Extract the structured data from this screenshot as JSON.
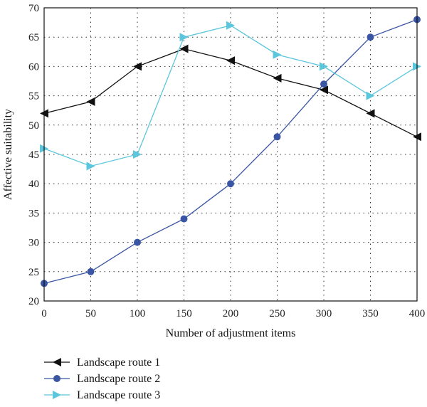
{
  "chart_data": {
    "type": "line",
    "title": "",
    "xlabel": "Number of adjustment items",
    "ylabel": "Affective suitability",
    "x": [
      0,
      50,
      100,
      150,
      200,
      250,
      300,
      350,
      400
    ],
    "xlim": [
      0,
      400
    ],
    "ylim": [
      20,
      70
    ],
    "xticks": [
      0,
      50,
      100,
      150,
      200,
      250,
      300,
      350,
      400
    ],
    "yticks": [
      20,
      25,
      30,
      35,
      40,
      45,
      50,
      55,
      60,
      65,
      70
    ],
    "grid": true,
    "legend_position": "bottom-left",
    "series": [
      {
        "name": "Landscape route 1",
        "color": "#111111",
        "marker": "triangle-left",
        "values": [
          52,
          54,
          60,
          63,
          61,
          58,
          56,
          52,
          48
        ]
      },
      {
        "name": "Landscape route 2",
        "color": "#3a55a4",
        "marker": "circle",
        "values": [
          23,
          25,
          30,
          34,
          40,
          48,
          57,
          65,
          68
        ]
      },
      {
        "name": "Landscape route 3",
        "color": "#5bc6dc",
        "marker": "triangle-right",
        "values": [
          46,
          43,
          45,
          65,
          67,
          62,
          60,
          55,
          60
        ]
      }
    ]
  }
}
